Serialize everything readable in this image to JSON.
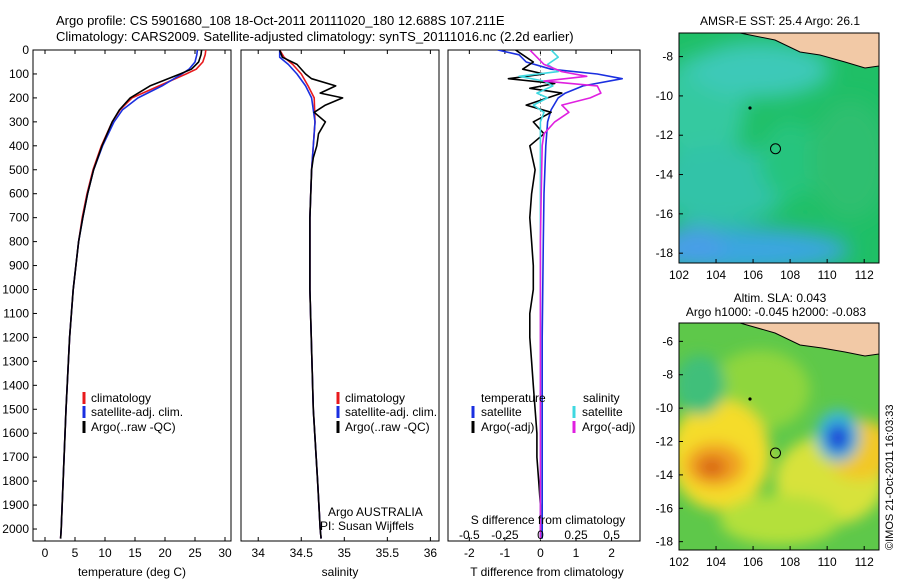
{
  "header": {
    "line1": "Argo profile: CS 5901680_108 18-Oct-2011 20111020_180 12.688S 107.211E",
    "line2": "Climatology: CARS2009. Satellite-adjusted climatology: synTS_20111016.nc (2.2d earlier)"
  },
  "colors": {
    "climatology": "#e8191c",
    "satellite": "#1a2fe0",
    "argo": "#000000",
    "sal_satellite": "#3fd8e0",
    "sal_argo": "#e020e0",
    "land": "#f2c9a6"
  },
  "depth_axis": {
    "ylim": [
      0,
      2050
    ],
    "ticks": [
      0,
      100,
      200,
      300,
      400,
      500,
      600,
      700,
      800,
      900,
      1000,
      1100,
      1200,
      1300,
      1400,
      1500,
      1600,
      1700,
      1800,
      1900,
      2000
    ]
  },
  "side_text": "©IMOS 21-Oct-2011 16:03:33",
  "chart_data": [
    {
      "id": "temperature",
      "type": "line",
      "xlabel": "temperature (deg C)",
      "xlim": [
        -2,
        31
      ],
      "xticks": [
        0,
        5,
        10,
        15,
        20,
        25,
        30
      ],
      "legend": {
        "placement": "bottom-center",
        "items": [
          "climatology",
          "satellite-adj. clim.",
          "Argo(..raw -QC)"
        ]
      },
      "series": [
        {
          "name": "climatology",
          "color_key": "climatology",
          "depth": [
            0,
            20,
            50,
            80,
            100,
            150,
            200,
            250,
            300,
            400,
            500,
            600,
            700,
            800,
            1000,
            1200,
            1500,
            1750,
            2000,
            2040
          ],
          "values": [
            26.8,
            26.7,
            26.3,
            25.2,
            23.5,
            19.0,
            14.5,
            12.5,
            11.2,
            9.4,
            8.0,
            7.0,
            6.2,
            5.6,
            4.7,
            4.1,
            3.5,
            3.1,
            2.7,
            2.6
          ]
        },
        {
          "name": "satellite-adj. clim.",
          "color_key": "satellite",
          "depth": [
            0,
            20,
            50,
            80,
            100,
            150,
            200,
            250,
            300,
            400,
            500,
            600,
            700,
            800,
            1000,
            1200,
            1500,
            1750,
            2000,
            2040
          ],
          "values": [
            25.4,
            25.3,
            25.0,
            24.0,
            22.8,
            19.5,
            15.5,
            12.9,
            11.5,
            9.6,
            8.1,
            7.1,
            6.3,
            5.6,
            4.7,
            4.1,
            3.5,
            3.1,
            2.7,
            2.6
          ]
        },
        {
          "name": "Argo(..raw -QC)",
          "color_key": "argo",
          "depth": [
            0,
            20,
            50,
            80,
            100,
            150,
            200,
            250,
            300,
            400,
            500,
            600,
            700,
            800,
            1000,
            1200,
            1500,
            1750,
            2000,
            2040
          ],
          "values": [
            26.1,
            26.0,
            25.6,
            24.4,
            22.5,
            17.5,
            14.2,
            12.4,
            11.2,
            9.5,
            8.1,
            7.1,
            6.3,
            5.6,
            4.7,
            4.1,
            3.5,
            3.1,
            2.7,
            2.6
          ]
        }
      ]
    },
    {
      "id": "salinity",
      "type": "line",
      "xlabel": "salinity",
      "xlim": [
        33.8,
        36.1
      ],
      "xticks": [
        34,
        34.5,
        35,
        35.5,
        36
      ],
      "legend": {
        "placement": "bottom-center",
        "items": [
          "climatology",
          "satellite-adj. clim.",
          "Argo(..raw -QC)"
        ]
      },
      "annotation": [
        "Argo AUSTRALIA",
        "PI: Susan Wijffels"
      ],
      "series": [
        {
          "name": "climatology",
          "color_key": "climatology",
          "depth": [
            0,
            30,
            60,
            100,
            150,
            200,
            300,
            400,
            500,
            700,
            1000,
            1500,
            1800,
            2000,
            2040
          ],
          "values": [
            34.25,
            34.3,
            34.4,
            34.5,
            34.58,
            34.65,
            34.66,
            34.64,
            34.62,
            34.6,
            34.6,
            34.64,
            34.69,
            34.72,
            34.73
          ]
        },
        {
          "name": "satellite-adj. clim.",
          "color_key": "satellite",
          "depth": [
            0,
            30,
            60,
            100,
            150,
            200,
            300,
            400,
            500,
            700,
            1000,
            1500,
            1800,
            2000,
            2040
          ],
          "values": [
            34.25,
            34.25,
            34.35,
            34.45,
            34.55,
            34.62,
            34.66,
            34.64,
            34.62,
            34.6,
            34.6,
            34.64,
            34.69,
            34.72,
            34.73
          ]
        },
        {
          "name": "Argo(..raw -QC)",
          "color_key": "argo",
          "depth": [
            0,
            30,
            60,
            100,
            120,
            150,
            180,
            200,
            230,
            260,
            300,
            350,
            400,
            450,
            500,
            700,
            1000,
            1500,
            1800,
            2000,
            2040
          ],
          "values": [
            34.25,
            34.28,
            34.45,
            34.55,
            34.62,
            34.9,
            34.72,
            34.98,
            34.78,
            34.65,
            34.78,
            34.7,
            34.68,
            34.64,
            34.62,
            34.6,
            34.6,
            34.64,
            34.69,
            34.72,
            34.73
          ]
        }
      ]
    },
    {
      "id": "difference",
      "type": "line",
      "xlabel": "T difference from climatology",
      "xlabel_top": "S difference from climatology",
      "xlim": [
        -2.6,
        2.8
      ],
      "xticks": [
        -2,
        -1,
        0,
        1,
        2
      ],
      "xticks_top": [
        -0.5,
        -0.25,
        0,
        0.25,
        0.5
      ],
      "legend": {
        "placement": "bottom",
        "groups": [
          {
            "title": "temperature",
            "items": [
              "satellite",
              "Argo(-adj)"
            ]
          },
          {
            "title": "salinity",
            "items": [
              "satellite",
              "Argo(-adj)"
            ]
          }
        ]
      },
      "series": [
        {
          "name": "temperature satellite",
          "color_key": "satellite",
          "depth": [
            0,
            20,
            50,
            80,
            100,
            120,
            150,
            180,
            200,
            250,
            300,
            400,
            600,
            800,
            1200,
            1600,
            2000,
            2040
          ],
          "values": [
            -1.2,
            -0.6,
            -0.4,
            0.3,
            1.6,
            2.3,
            1.2,
            0.7,
            0.5,
            0.3,
            0.2,
            0.15,
            0.1,
            0.08,
            0.05,
            0.05,
            0.05,
            0.05
          ]
        },
        {
          "name": "temperature Argo(-adj)",
          "color_key": "argo",
          "depth": [
            0,
            20,
            50,
            80,
            100,
            120,
            140,
            160,
            180,
            200,
            230,
            260,
            300,
            350,
            400,
            500,
            600,
            700,
            800,
            900,
            1000,
            1100,
            1200,
            1300,
            1400,
            1500,
            1600,
            1700,
            1800,
            1900,
            2000,
            2040
          ],
          "values": [
            -0.7,
            -0.5,
            -0.2,
            -0.5,
            0.1,
            -0.9,
            0.4,
            -0.3,
            0.6,
            0.2,
            -0.4,
            0.3,
            -0.2,
            0.1,
            -0.3,
            -0.15,
            -0.25,
            -0.3,
            -0.25,
            -0.2,
            -0.2,
            -0.3,
            -0.3,
            -0.25,
            -0.2,
            -0.15,
            -0.1,
            -0.1,
            -0.05,
            0,
            0,
            0
          ]
        },
        {
          "name": "salinity satellite",
          "color_key": "sal_satellite",
          "depth": [
            0,
            30,
            60,
            90,
            110,
            130,
            150,
            180,
            200,
            230,
            260,
            300,
            400,
            600,
            800,
            1200,
            1600,
            2000,
            2040
          ],
          "values": [
            0.3,
            0.5,
            0.2,
            0.5,
            -0.6,
            0.1,
            0.35,
            -0.1,
            0.2,
            -0.2,
            0.1,
            0.0,
            0.0,
            0.0,
            0.0,
            0.0,
            0.0,
            0.0,
            0.0
          ]
        },
        {
          "name": "salinity Argo(-adj)",
          "color_key": "sal_argo",
          "depth": [
            0,
            30,
            60,
            90,
            110,
            130,
            150,
            180,
            200,
            230,
            260,
            300,
            350,
            400,
            600,
            800,
            1200,
            1600,
            2000,
            2040
          ],
          "values": [
            -0.3,
            -0.1,
            0.1,
            0.6,
            1.3,
            0.1,
            1.6,
            1.7,
            1.4,
            0.6,
            0.8,
            0.4,
            0.1,
            0.05,
            0.02,
            0.0,
            0.0,
            0.0,
            0.0,
            0.0
          ]
        }
      ]
    },
    {
      "id": "sst_map",
      "type": "heatmap",
      "title": "AMSR-E SST: 25.4  Argo: 26.1",
      "xlim": [
        102,
        112.8
      ],
      "ylim": [
        -18.5,
        -6.8
      ],
      "xticks": [
        102,
        104,
        106,
        108,
        110,
        112
      ],
      "yticks": [
        -8,
        -10,
        -12,
        -14,
        -16,
        -18
      ],
      "argo_position": {
        "lon": 107.211,
        "lat": -12.688
      }
    },
    {
      "id": "sla_map",
      "type": "heatmap",
      "title": "Altim. SLA: 0.043",
      "subtitle": "Argo h1000: -0.045 h2000: -0.083",
      "xlim": [
        102,
        112.8
      ],
      "ylim": [
        -18.5,
        -4.9
      ],
      "xticks": [
        102,
        104,
        106,
        108,
        110,
        112
      ],
      "yticks": [
        -6,
        -8,
        -10,
        -12,
        -14,
        -16,
        -18
      ],
      "argo_position": {
        "lon": 107.211,
        "lat": -12.688
      }
    }
  ]
}
